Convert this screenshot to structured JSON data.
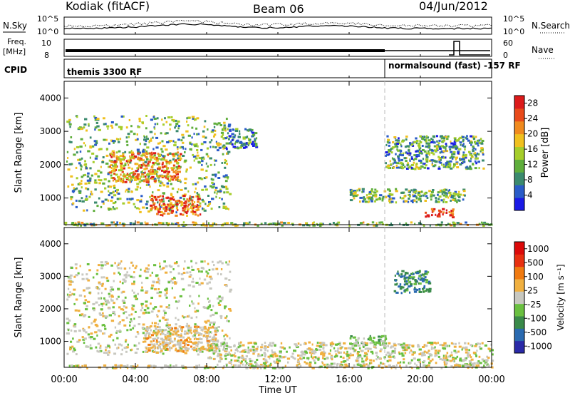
{
  "header": {
    "station": "Kodiak (fitACF)",
    "beam": "Beam 06",
    "date": "04/Jun/2012"
  },
  "summary_panels": {
    "nsky_label": "N.Sky",
    "nsky_ticks": [
      "10^5",
      "10^0"
    ],
    "nsearch_label": "N.Search",
    "nsearch_ticks": [
      "10^5",
      "10^0"
    ],
    "freq_label": "Freq.",
    "freq_unit": "[MHz]",
    "freq_ticks": [
      "10",
      "8"
    ],
    "nave_label": "Nave",
    "nave_ticks": [
      "60",
      "0"
    ],
    "cpid_label": "CPID",
    "cpid_segments": [
      "themis 3300 RF",
      "normalsound (fast) -157 RF"
    ]
  },
  "colors": {
    "power_scale": [
      "#1a1ae6",
      "#2a5cc8",
      "#3b8a6e",
      "#5fae3c",
      "#a5cd2a",
      "#f0c01e",
      "#f08a1e",
      "#e84a1a",
      "#dc1a1a"
    ],
    "velocity_scale": [
      "#2a2aa8",
      "#2a6ab0",
      "#3a8a4a",
      "#6ac040",
      "#c8c8c0",
      "#f0b040",
      "#f07a10",
      "#e83010",
      "#dc0a0a"
    ],
    "background": "#ffffff"
  },
  "chart_data": [
    {
      "type": "heatmap",
      "name_panel": "power",
      "ylabel": "Slant Range [km]",
      "yticks": [
        "1000",
        "2000",
        "3000",
        "4000"
      ],
      "ylim": [
        200,
        4500
      ],
      "colorbar_label": "Power [dB]",
      "colorbar_ticks": [
        "4",
        "8",
        "12",
        "16",
        "20",
        "24",
        "28"
      ],
      "clim": [
        0,
        30
      ],
      "regions": [
        {
          "t_start": 0.1,
          "t_end": 9.3,
          "r_start": 600,
          "r_end": 3500,
          "level": 12
        },
        {
          "t_start": 2.5,
          "t_end": 6.5,
          "r_start": 1500,
          "r_end": 2400,
          "level": 21
        },
        {
          "t_start": 4.8,
          "t_end": 7.6,
          "r_start": 500,
          "r_end": 1100,
          "level": 25
        },
        {
          "t_start": 8.8,
          "t_end": 10.8,
          "r_start": 2500,
          "r_end": 3100,
          "level": 8
        },
        {
          "t_start": 16.0,
          "t_end": 22.5,
          "r_start": 900,
          "r_end": 1300,
          "level": 12
        },
        {
          "t_start": 20.2,
          "t_end": 21.8,
          "r_start": 450,
          "r_end": 700,
          "level": 28
        },
        {
          "t_start": 18.0,
          "t_end": 23.5,
          "r_start": 1900,
          "r_end": 2900,
          "level": 10
        },
        {
          "t_start": 0.0,
          "t_end": 24.0,
          "r_start": 200,
          "r_end": 300,
          "level": 14
        }
      ]
    },
    {
      "type": "heatmap",
      "name_panel": "velocity",
      "ylabel": "Slant Range [km]",
      "yticks": [
        "1000",
        "2000",
        "3000",
        "4000"
      ],
      "ylim": [
        200,
        4500
      ],
      "colorbar_label": "Velocity [m s⁻¹]",
      "colorbar_ticks": [
        "1000",
        "500",
        "100",
        "25",
        "-25",
        "-100",
        "-500",
        "-1000"
      ],
      "clim": [
        -1000,
        1000
      ],
      "regions": [
        {
          "t_start": 0.1,
          "t_end": 9.3,
          "r_start": 600,
          "r_end": 3500,
          "level": 0
        },
        {
          "t_start": 4.5,
          "t_end": 8.5,
          "r_start": 700,
          "r_end": 1500,
          "level": 150
        },
        {
          "t_start": 18.5,
          "t_end": 20.5,
          "r_start": 2500,
          "r_end": 3200,
          "level": -500
        },
        {
          "t_start": 16.0,
          "t_end": 18.0,
          "r_start": 900,
          "r_end": 1200,
          "level": -250
        },
        {
          "t_start": 8.0,
          "t_end": 24.0,
          "r_start": 300,
          "r_end": 1000,
          "level": 0
        },
        {
          "t_start": 0.0,
          "t_end": 24.0,
          "r_start": 200,
          "r_end": 300,
          "level": 60
        }
      ]
    }
  ],
  "xaxis": {
    "label": "Time UT",
    "ticks": [
      "00:00",
      "04:00",
      "08:00",
      "12:00",
      "16:00",
      "20:00",
      "00:00"
    ],
    "xlim": [
      0,
      24
    ]
  }
}
